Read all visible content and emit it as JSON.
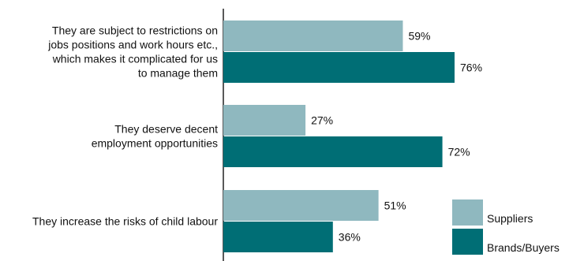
{
  "chart_data": {
    "type": "bar",
    "orientation": "horizontal",
    "title": "",
    "xlabel": "",
    "ylabel": "",
    "xlim": [
      0,
      100
    ],
    "grid": false,
    "legend_position": "bottom-right",
    "value_suffix": "%",
    "categories": [
      "They are subject to restrictions on jobs positions and work hours etc., which makes it complicated for us to manage them",
      "They deserve decent employment opportunities",
      "They increase the risks of child labour"
    ],
    "category_lines": [
      [
        "They are subject to restrictions on",
        "jobs positions and work hours etc.,",
        "which makes it complicated for us",
        "to manage them"
      ],
      [
        "They deserve decent",
        "employment opportunities"
      ],
      [
        "They increase the risks of child labour"
      ]
    ],
    "series": [
      {
        "name": "Suppliers",
        "color": "#8fb8bf",
        "values": [
          59,
          27,
          51
        ]
      },
      {
        "name": "Brands/Buyers",
        "color": "#006e75",
        "values": [
          76,
          72,
          36
        ]
      }
    ]
  }
}
